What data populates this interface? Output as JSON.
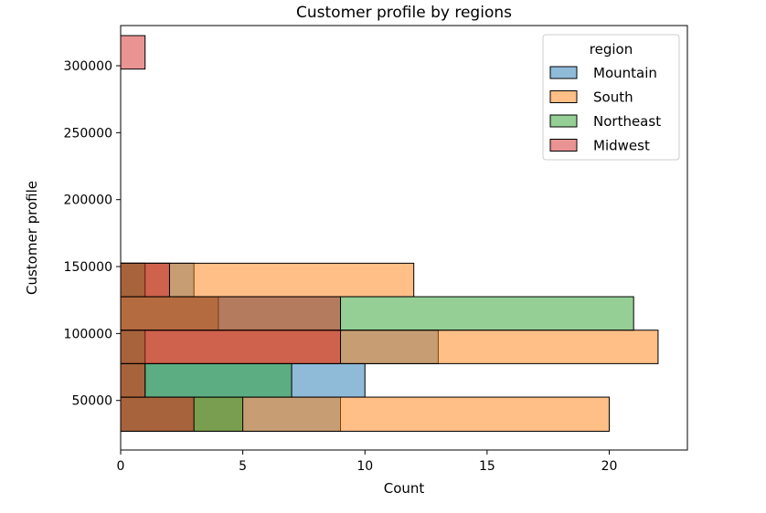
{
  "chart_data": {
    "type": "histogram",
    "orientation": "horizontal",
    "title": "Customer profile by regions",
    "xlabel": "Count",
    "ylabel": "Customer profile",
    "xlim": [
      0,
      23.2
    ],
    "ylim": [
      13000,
      330000
    ],
    "x_ticks": [
      0,
      5,
      10,
      15,
      20
    ],
    "y_ticks": [
      50000,
      100000,
      150000,
      200000,
      250000,
      300000
    ],
    "bin_edges": [
      27000,
      52500,
      77500,
      102500,
      127500,
      152500,
      172500,
      297500,
      322500
    ],
    "grid": false,
    "legend": {
      "title": "region",
      "placement": "upper right"
    },
    "bar_alpha": 0.5,
    "series": [
      {
        "name": "Mountain",
        "color": "#1f77b4",
        "bins": [
          {
            "y0": 27000,
            "y1": 52500,
            "count": 9
          },
          {
            "y0": 52500,
            "y1": 77500,
            "count": 10
          },
          {
            "y0": 77500,
            "y1": 102500,
            "count": 13
          },
          {
            "y0": 127500,
            "y1": 152500,
            "count": 3
          }
        ]
      },
      {
        "name": "South",
        "color": "#ff7f0e",
        "bins": [
          {
            "y0": 27000,
            "y1": 52500,
            "count": 20
          },
          {
            "y0": 52500,
            "y1": 77500,
            "count": 1
          },
          {
            "y0": 77500,
            "y1": 102500,
            "count": 22
          },
          {
            "y0": 102500,
            "y1": 127500,
            "count": 4
          },
          {
            "y0": 127500,
            "y1": 152500,
            "count": 12
          }
        ]
      },
      {
        "name": "Northeast",
        "color": "#2ca02c",
        "bins": [
          {
            "y0": 27000,
            "y1": 52500,
            "count": 5
          },
          {
            "y0": 52500,
            "y1": 77500,
            "count": 7
          },
          {
            "y0": 77500,
            "y1": 102500,
            "count": 1
          },
          {
            "y0": 102500,
            "y1": 127500,
            "count": 21
          },
          {
            "y0": 127500,
            "y1": 152500,
            "count": 1
          }
        ]
      },
      {
        "name": "Midwest",
        "color": "#d62728",
        "bins": [
          {
            "y0": 27000,
            "y1": 52500,
            "count": 3
          },
          {
            "y0": 52500,
            "y1": 77500,
            "count": 1
          },
          {
            "y0": 77500,
            "y1": 102500,
            "count": 9
          },
          {
            "y0": 102500,
            "y1": 127500,
            "count": 9
          },
          {
            "y0": 127500,
            "y1": 152500,
            "count": 2
          },
          {
            "y0": 297500,
            "y1": 322500,
            "count": 1
          }
        ]
      }
    ]
  }
}
